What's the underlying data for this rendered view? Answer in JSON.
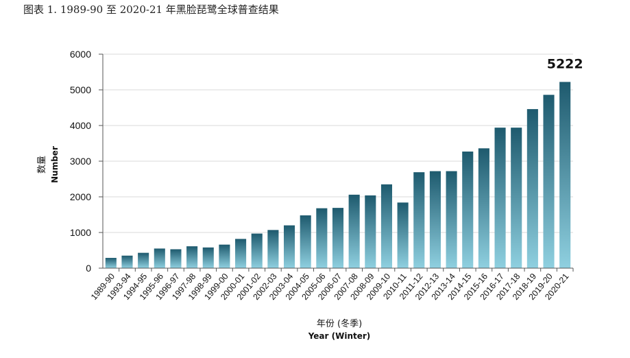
{
  "figure": {
    "caption": "图表 1.    1989-90 至 2020-21 年黑脸琵鹭全球普查结果"
  },
  "chart_data": {
    "type": "bar",
    "title": "",
    "xlabel_cn": "年份 (冬季)",
    "xlabel": "Year (Winter)",
    "ylabel_cn": "数量",
    "ylabel": "Number",
    "ylim": [
      0,
      6000
    ],
    "yticks": [
      0,
      1000,
      2000,
      3000,
      4000,
      5000,
      6000
    ],
    "grid": true,
    "bar_color_top": "#1e5a6e",
    "bar_color_bottom": "#8fd0e0",
    "highlight_label": "5222",
    "categories": [
      "1989-90",
      "1993-94",
      "1994-95",
      "1995-96",
      "1996-97",
      "1997-98",
      "1998-99",
      "1999-00",
      "2000-01",
      "2001-02",
      "2002-03",
      "2003-04",
      "2004-05",
      "2005-06",
      "2006-07",
      "2007-08",
      "2008-09",
      "2009-10",
      "2010-11",
      "2011-12",
      "2012-13",
      "2013-14",
      "2014-15",
      "2015-16",
      "2016-17",
      "2017-18",
      "2018-19",
      "2019-20",
      "2020-21"
    ],
    "values": [
      288,
      351,
      430,
      550,
      530,
      613,
      580,
      660,
      820,
      970,
      1070,
      1200,
      1480,
      1680,
      1690,
      2060,
      2040,
      2350,
      1840,
      2690,
      2720,
      2720,
      3270,
      3360,
      3940,
      3940,
      4460,
      4860,
      5222
    ]
  }
}
